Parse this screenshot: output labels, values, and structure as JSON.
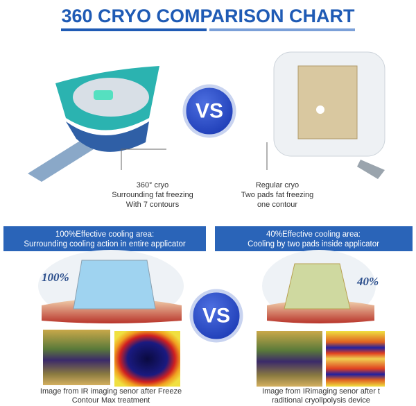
{
  "header": {
    "title": "360 CRYO COMPARISON CHART"
  },
  "vs_labels": [
    "VS",
    "VS"
  ],
  "top": {
    "left": {
      "lines": [
        "360° cryo",
        "Surrounding fat freezing",
        "With 7 contours"
      ]
    },
    "right": {
      "lines": [
        "Regular cryo",
        "Two pads fat freezing",
        "one contour"
      ]
    }
  },
  "banners": {
    "left": {
      "lines": [
        "100%Effective cooling area:",
        "Surrounding cooling action in entire applicator"
      ],
      "percent": "100%"
    },
    "right": {
      "lines": [
        "40%Effective cooling area:",
        "Cooling by two pads inside applicator"
      ],
      "percent": "40%"
    }
  },
  "bottom": {
    "left": {
      "lines": [
        "Image from IR imaging senor after Freeze",
        "Contour Max treatment"
      ]
    },
    "right": {
      "lines": [
        "Image from IRimaging senor after t",
        "raditional cryollpolysis device"
      ]
    }
  }
}
